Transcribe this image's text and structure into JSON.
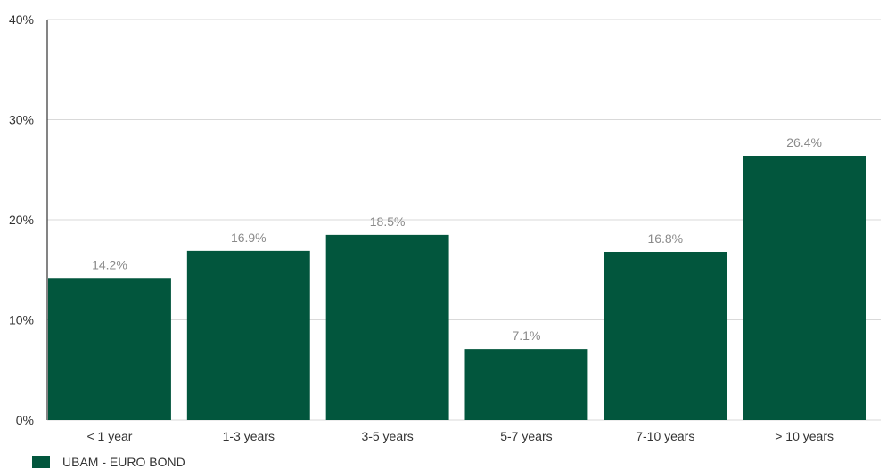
{
  "chart_data": {
    "type": "bar",
    "categories": [
      "< 1 year",
      "1-3 years",
      "3-5 years",
      "5-7 years",
      "7-10 years",
      "> 10 years"
    ],
    "series": [
      {
        "name": "UBAM - EURO BOND",
        "values": [
          14.2,
          16.9,
          18.5,
          7.1,
          16.8,
          26.4
        ]
      }
    ],
    "data_labels": [
      "14.2%",
      "16.9%",
      "18.5%",
      "7.1%",
      "16.8%",
      "26.4%"
    ],
    "yticks": [
      0,
      10,
      20,
      30,
      40
    ],
    "ytick_labels": [
      "0%",
      "10%",
      "20%",
      "30%",
      "40%"
    ],
    "ylim": [
      0,
      40
    ],
    "grid": true,
    "legend_position": "bottom-left",
    "bar_color": "#02563d",
    "title": "",
    "xlabel": "",
    "ylabel": ""
  }
}
